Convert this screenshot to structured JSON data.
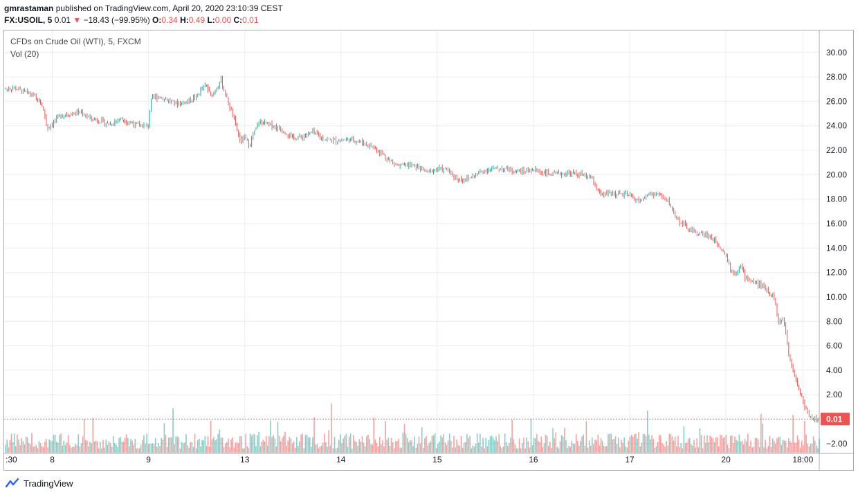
{
  "header": {
    "author": "gmrastaman",
    "published": "published on TradingView.com, April 20, 2020 23:10:39 CEST",
    "symbol": "FX:USOIL, 5",
    "last": "0.01",
    "arrow": "▼",
    "change": "−18.43 (−99.95%)",
    "o_label": "O:",
    "o_val": "0.34",
    "h_label": "H:",
    "h_val": "0.49",
    "l_label": "L:",
    "l_val": "0.00",
    "c_label": "C:",
    "c_val": "0.01"
  },
  "legend": {
    "title": "CFDs on Crude Oil (WTI), 5, FXCM",
    "volume": "Vol (20)"
  },
  "footer": {
    "brand": "TradingView"
  },
  "colors": {
    "up": "#26a69a",
    "down": "#ef5350",
    "grid": "#e9ecf1",
    "axis": "#a7a9ae"
  },
  "chart_data": {
    "type": "line",
    "title": "CFDs on Crude Oil (WTI), 5, FXCM",
    "ylim": [
      -2.8,
      31.8
    ],
    "yticks": [
      30,
      28,
      26,
      24,
      22,
      20,
      18,
      16,
      14,
      12,
      10,
      8,
      6,
      4,
      2,
      -2
    ],
    "ytick_labels": [
      "30.00",
      "28.00",
      "26.00",
      "24.00",
      "22.00",
      "20.00",
      "18.00",
      "16.00",
      "14.00",
      "12.00",
      "10.00",
      "8.00",
      "6.00",
      "4.00",
      "2.00",
      "−2.00"
    ],
    "xticks": [
      {
        "label": ":30",
        "pos": 0.0
      },
      {
        "label": "8",
        "pos": 0.5
      },
      {
        "label": "9",
        "pos": 1.5
      },
      {
        "label": "13",
        "pos": 2.5
      },
      {
        "label": "14",
        "pos": 3.5
      },
      {
        "label": "15",
        "pos": 4.5
      },
      {
        "label": "16",
        "pos": 5.5
      },
      {
        "label": "17",
        "pos": 6.5
      },
      {
        "label": "20",
        "pos": 7.5
      },
      {
        "label": "18:00",
        "pos": 8.3
      }
    ],
    "x_domain": [
      0,
      8.47
    ],
    "last_price": 0.01,
    "last_label": "0.01",
    "series": [
      {
        "name": "USOIL",
        "x": [
          0,
          0.1,
          0.2,
          0.3,
          0.4,
          0.45,
          0.5,
          0.55,
          0.6,
          0.7,
          0.8,
          0.9,
          1.0,
          1.1,
          1.2,
          1.3,
          1.4,
          1.5,
          1.52,
          1.55,
          1.6,
          1.7,
          1.8,
          1.9,
          2.0,
          2.05,
          2.1,
          2.15,
          2.2,
          2.25,
          2.3,
          2.35,
          2.4,
          2.45,
          2.5,
          2.55,
          2.6,
          2.65,
          2.7,
          2.8,
          2.9,
          3.0,
          3.1,
          3.2,
          3.3,
          3.4,
          3.5,
          3.6,
          3.7,
          3.8,
          3.9,
          4.0,
          4.1,
          4.2,
          4.3,
          4.4,
          4.5,
          4.6,
          4.7,
          4.8,
          4.9,
          5.0,
          5.1,
          5.2,
          5.3,
          5.4,
          5.5,
          5.6,
          5.7,
          5.8,
          5.9,
          6.0,
          6.1,
          6.2,
          6.3,
          6.4,
          6.5,
          6.6,
          6.7,
          6.8,
          6.9,
          7.0,
          7.1,
          7.2,
          7.3,
          7.4,
          7.5,
          7.55,
          7.6,
          7.65,
          7.7,
          7.8,
          7.9,
          8.0,
          8.05,
          8.1,
          8.15,
          8.2,
          8.25,
          8.3,
          8.33,
          8.36,
          8.38,
          8.4,
          8.42,
          8.44,
          8.46,
          8.47
        ],
        "values": [
          27.0,
          27.1,
          26.8,
          26.5,
          25.6,
          23.8,
          24.2,
          24.6,
          24.9,
          25.0,
          25.1,
          24.6,
          24.4,
          24.1,
          24.6,
          24.3,
          24.0,
          24.0,
          26.0,
          26.3,
          26.4,
          26.1,
          25.8,
          26.0,
          26.4,
          27.0,
          27.3,
          26.4,
          27.0,
          27.8,
          26.5,
          25.4,
          24.2,
          22.8,
          23.0,
          22.4,
          23.5,
          24.3,
          24.2,
          24.0,
          23.6,
          23.0,
          23.1,
          23.5,
          23.0,
          22.8,
          22.8,
          22.9,
          22.7,
          22.4,
          21.9,
          21.2,
          20.7,
          20.8,
          20.6,
          20.2,
          20.5,
          20.4,
          19.7,
          19.6,
          20.0,
          20.4,
          20.5,
          20.5,
          20.3,
          20.3,
          20.4,
          20.2,
          20.0,
          20.1,
          20.1,
          20.0,
          19.7,
          18.3,
          18.5,
          18.4,
          18.3,
          17.8,
          18.4,
          18.4,
          17.8,
          16.3,
          15.6,
          15.2,
          15.1,
          14.5,
          13.5,
          12.2,
          12.0,
          12.6,
          11.6,
          11.2,
          10.8,
          10.0,
          7.8,
          8.3,
          5.5,
          4.0,
          2.6,
          1.5,
          0.8,
          0.4,
          0.2,
          0.1,
          0.05,
          0.02,
          0.01,
          0.01
        ]
      }
    ],
    "volume_name": "Vol (20)"
  }
}
